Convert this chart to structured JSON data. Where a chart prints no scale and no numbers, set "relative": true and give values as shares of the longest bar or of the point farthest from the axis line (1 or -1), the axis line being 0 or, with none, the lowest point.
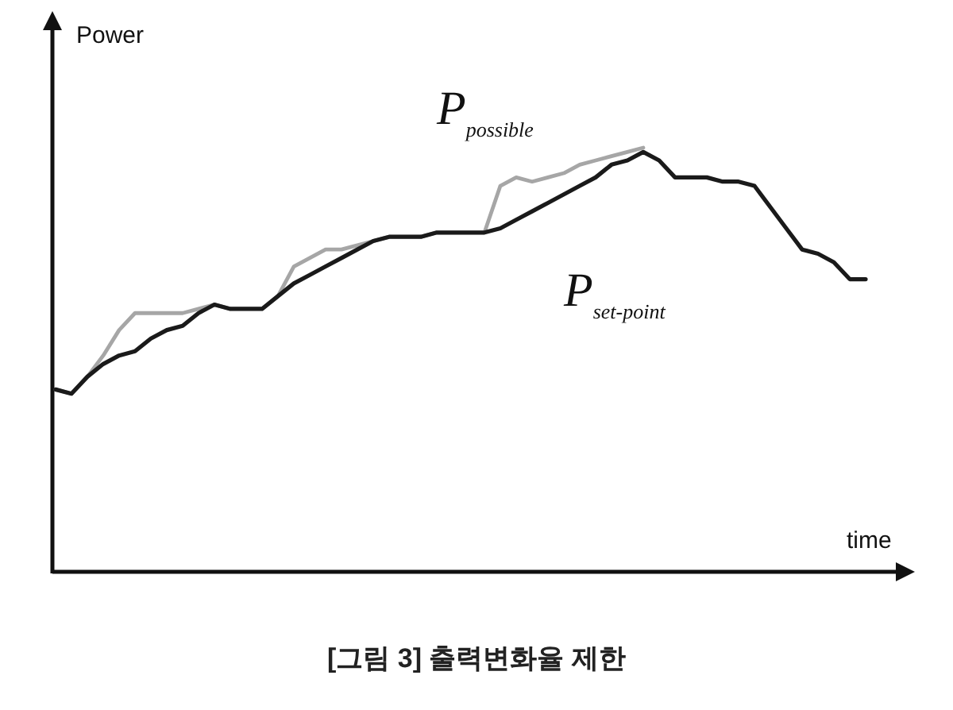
{
  "chart_data": {
    "type": "line",
    "relative": true,
    "xlabel": "time",
    "ylabel": "Power",
    "annotations": [
      "[그림 3] 출력변화율 제한"
    ],
    "categories": [
      null,
      null,
      null,
      null,
      null,
      null,
      null,
      null,
      null,
      null,
      null,
      null,
      null,
      null,
      null,
      null,
      null,
      null,
      null,
      null,
      null,
      null,
      null,
      null,
      null,
      null,
      null,
      null,
      null,
      null,
      null,
      null,
      null,
      null,
      null,
      null,
      null,
      null,
      null,
      null,
      null,
      null,
      null,
      null,
      null,
      null,
      null,
      null,
      null,
      null,
      null,
      null
    ],
    "series": [
      {
        "name": "P$_{possible}$",
        "color": "#a6a6a6",
        "values": [
          0.43,
          0.42,
          0.46,
          0.51,
          0.57,
          0.61,
          0.61,
          0.61,
          0.61,
          0.62,
          0.63,
          0.62,
          0.62,
          0.62,
          0.65,
          0.72,
          0.74,
          0.76,
          0.76,
          0.77,
          0.78,
          0.79,
          0.79,
          0.79,
          0.8,
          0.8,
          0.8,
          0.8,
          0.91,
          0.93,
          0.92,
          0.93,
          0.94,
          0.96,
          0.97,
          0.98,
          0.99,
          1.0,
          null,
          null,
          null,
          null,
          null,
          null,
          null,
          null,
          null,
          null,
          null,
          null,
          null,
          null
        ]
      },
      {
        "name": "P$_{set-point}$",
        "color": "#1a1a1a",
        "values": [
          0.43,
          0.42,
          0.46,
          0.49,
          0.51,
          0.52,
          0.55,
          0.57,
          0.58,
          0.61,
          0.63,
          0.62,
          0.62,
          0.62,
          0.65,
          0.68,
          0.7,
          0.72,
          0.74,
          0.76,
          0.78,
          0.79,
          0.79,
          0.79,
          0.8,
          0.8,
          0.8,
          0.8,
          0.81,
          0.83,
          0.85,
          0.87,
          0.89,
          0.91,
          0.93,
          0.96,
          0.97,
          0.99,
          0.97,
          0.93,
          0.93,
          0.93,
          0.92,
          0.92,
          0.91,
          0.86,
          0.81,
          0.76,
          0.75,
          0.73,
          0.69,
          0.69
        ]
      }
    ]
  }
}
